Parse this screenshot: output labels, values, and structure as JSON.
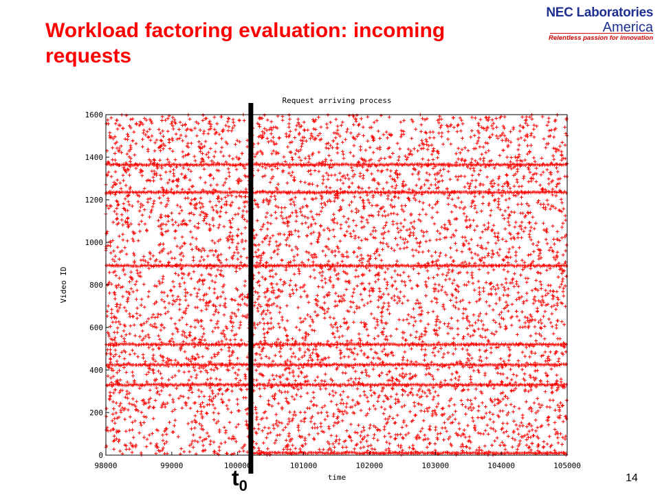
{
  "slide": {
    "title": "Workload factoring evaluation: incoming requests",
    "page_number": "14"
  },
  "logo": {
    "line1": "NEC Laboratories",
    "line2": "America",
    "line3": "Relentless passion for innovation"
  },
  "marker": {
    "base": "t",
    "subscript": "0",
    "x_value": 100200,
    "color": "#000000"
  },
  "chart_data": {
    "type": "scatter",
    "title": "Request arriving process",
    "xlabel": "time",
    "ylabel": "Video ID",
    "xlim": [
      98000,
      105000
    ],
    "ylim": [
      0,
      1600
    ],
    "x_ticks": [
      98000,
      99000,
      100000,
      101000,
      102000,
      103000,
      104000,
      105000
    ],
    "x_tick_labels": [
      "98000",
      "99000",
      "100000",
      "101000",
      "102000",
      "103000",
      "104000",
      "105000"
    ],
    "y_ticks": [
      0,
      200,
      400,
      600,
      800,
      1000,
      1200,
      1400,
      1600
    ],
    "y_tick_labels": [
      "0",
      "200",
      "400",
      "600",
      "800",
      "1000",
      "1200",
      "1400",
      "1600"
    ],
    "marker_symbol": "+",
    "series_color": "#ff0000",
    "grid": false,
    "uniform_region": {
      "x_range": [
        98000,
        105000
      ],
      "y_range": [
        0,
        1600
      ],
      "approx_points": 5200
    },
    "dense_bands": [
      {
        "y": 1365,
        "x_range": [
          98000,
          105000
        ]
      },
      {
        "y": 1235,
        "x_range": [
          98000,
          105000
        ]
      },
      {
        "y": 890,
        "x_range": [
          98000,
          105000
        ]
      },
      {
        "y": 520,
        "x_range": [
          98000,
          105000
        ]
      },
      {
        "y": 425,
        "x_range": [
          98000,
          105000
        ]
      },
      {
        "y": 330,
        "x_range": [
          98000,
          105000
        ]
      },
      {
        "y": 10,
        "x_range": [
          100200,
          105000
        ]
      }
    ]
  }
}
